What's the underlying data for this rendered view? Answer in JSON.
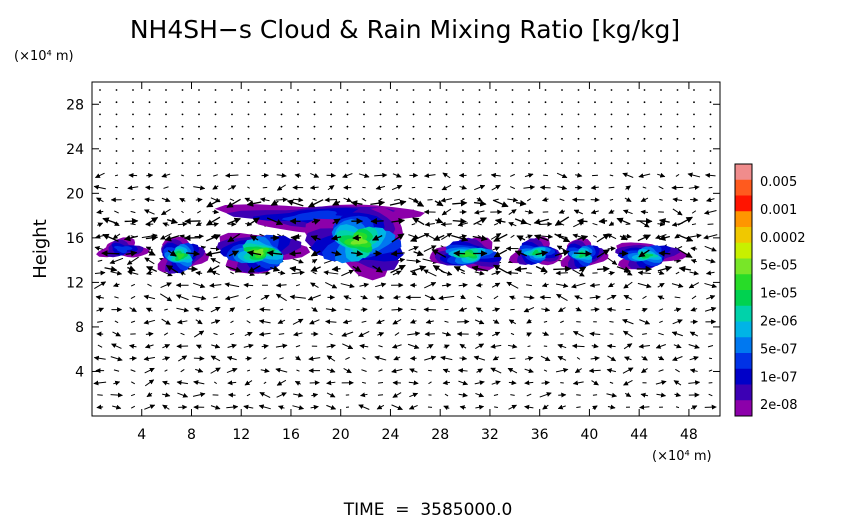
{
  "chart_data": {
    "type": "heatmap",
    "title": "NH4SH−s Cloud & Rain Mixing Ratio [kg/kg]",
    "y_unit_label": "(×10⁴ m)",
    "x_unit_label": "(×10⁴ m)",
    "ylabel": "Height",
    "footer": "TIME  =  3585000.0",
    "xlim": [
      0,
      50.5
    ],
    "ylim": [
      0,
      30
    ],
    "x_ticks": [
      4,
      8,
      12,
      16,
      20,
      24,
      28,
      32,
      36,
      40,
      44,
      48
    ],
    "y_ticks": [
      4,
      8,
      12,
      16,
      20,
      24,
      28
    ],
    "colorbar": {
      "labels": [
        "0.005",
        "0.001",
        "0.0002",
        "5e-05",
        "1e-05",
        "2e-06",
        "5e-07",
        "1e-07",
        "2e-08"
      ],
      "colors": [
        "#f08c8c",
        "#ff5a1e",
        "#ff1400",
        "#ff9600",
        "#f0c800",
        "#c8f000",
        "#78e628",
        "#28dc28",
        "#00d250",
        "#00d2aa",
        "#00b4e6",
        "#0078f0",
        "#0032e6",
        "#0000c8",
        "#3c00b4",
        "#8c00aa"
      ]
    },
    "cloud_blobs": [
      {
        "x": [
          0.3,
          4.7
        ],
        "y": [
          14.0,
          16.0
        ],
        "peak": 3
      },
      {
        "x": [
          5.0,
          9.2
        ],
        "y": [
          12.6,
          16.2
        ],
        "peak": 8
      },
      {
        "x": [
          9.7,
          17.1
        ],
        "y": [
          12.6,
          16.8
        ],
        "peak": 9
      },
      {
        "x": [
          9.7,
          26.8
        ],
        "y": [
          16.4,
          19.4
        ],
        "peak": 3
      },
      {
        "x": [
          17.0,
          25.9
        ],
        "y": [
          12.5,
          19.0
        ],
        "peak": 9
      },
      {
        "x": [
          27.0,
          33.5
        ],
        "y": [
          13.0,
          16.0
        ],
        "peak": 8
      },
      {
        "x": [
          33.5,
          38.0
        ],
        "y": [
          13.3,
          16.0
        ],
        "peak": 7
      },
      {
        "x": [
          37.5,
          41.4
        ],
        "y": [
          13.0,
          16.0
        ],
        "peak": 7
      },
      {
        "x": [
          41.6,
          47.5
        ],
        "y": [
          13.0,
          15.8
        ],
        "peak": 7
      }
    ]
  }
}
